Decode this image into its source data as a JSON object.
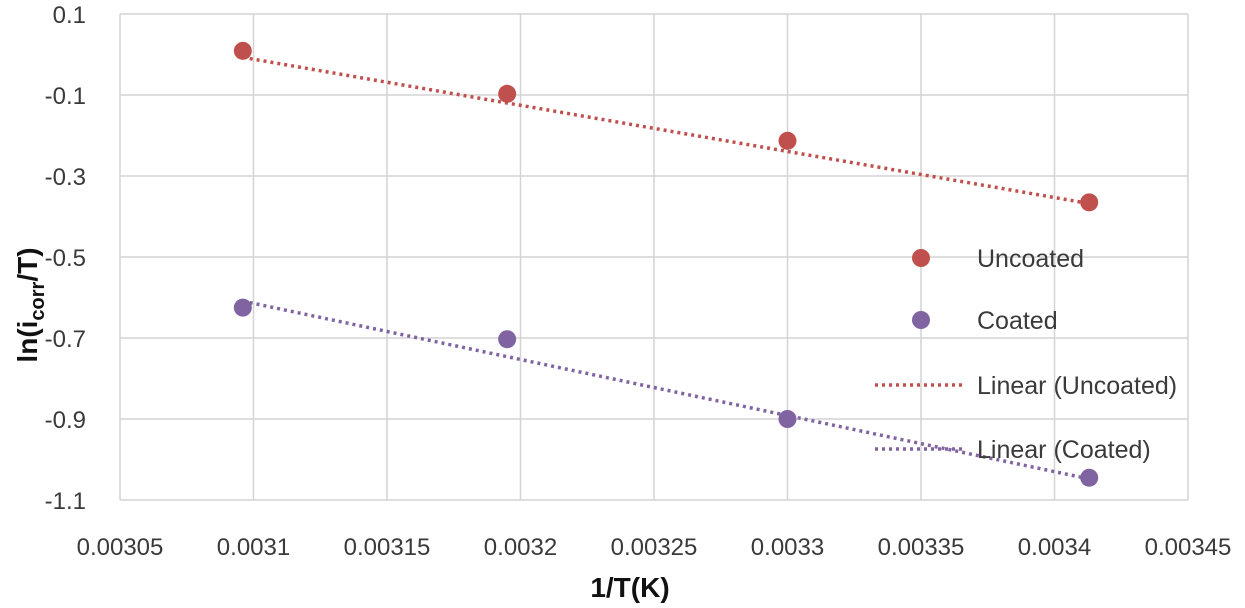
{
  "chart_data": {
    "type": "scatter",
    "title": "",
    "xlabel": "1/T(K)",
    "ylabel_main": "ln(i",
    "ylabel_sub": "corr",
    "ylabel_end": "/T)",
    "xlim": [
      0.00305,
      0.00345
    ],
    "ylim": [
      -1.1,
      0.1
    ],
    "x_ticks": [
      0.00305,
      0.0031,
      0.00315,
      0.0032,
      0.00325,
      0.0033,
      0.00335,
      0.0034,
      0.00345
    ],
    "x_tick_labels": [
      "0.00305",
      "0.0031",
      "0.00315",
      "0.0032",
      "0.00325",
      "0.0033",
      "0.00335",
      "0.0034",
      "0.00345"
    ],
    "y_ticks": [
      0.1,
      -0.1,
      -0.3,
      -0.5,
      -0.7,
      -0.9,
      -1.1
    ],
    "y_tick_labels": [
      "0.1",
      "-0.1",
      "-0.3",
      "-0.5",
      "-0.7",
      "-0.9",
      "-1.1"
    ],
    "grid": true,
    "legend_position": "right",
    "series": [
      {
        "name": "Uncoated",
        "color": "#c0504d",
        "x": [
          0.003096,
          0.003195,
          0.0033,
          0.003413
        ],
        "y": [
          0.009,
          -0.097,
          -0.213,
          -0.365
        ],
        "trendline": {
          "name": "Linear (Uncoated)",
          "x": [
            0.003096,
            0.003413
          ],
          "y": [
            -0.007,
            -0.368
          ]
        }
      },
      {
        "name": "Coated",
        "color": "#8064a2",
        "x": [
          0.003096,
          0.003195,
          0.0033,
          0.003413
        ],
        "y": [
          -0.625,
          -0.703,
          -0.9,
          -1.045
        ],
        "trendline": {
          "name": "Linear (Coated)",
          "x": [
            0.003096,
            0.003413
          ],
          "y": [
            -0.609,
            -1.048
          ]
        }
      }
    ],
    "legend": [
      {
        "label": "Uncoated",
        "kind": "marker",
        "color": "#c0504d"
      },
      {
        "label": "Coated",
        "kind": "marker",
        "color": "#8064a2"
      },
      {
        "label": "Linear (Uncoated)",
        "kind": "dotted-line",
        "color": "#c0504d"
      },
      {
        "label": "Linear (Coated)",
        "kind": "dotted-line",
        "color": "#8064a2"
      }
    ]
  }
}
